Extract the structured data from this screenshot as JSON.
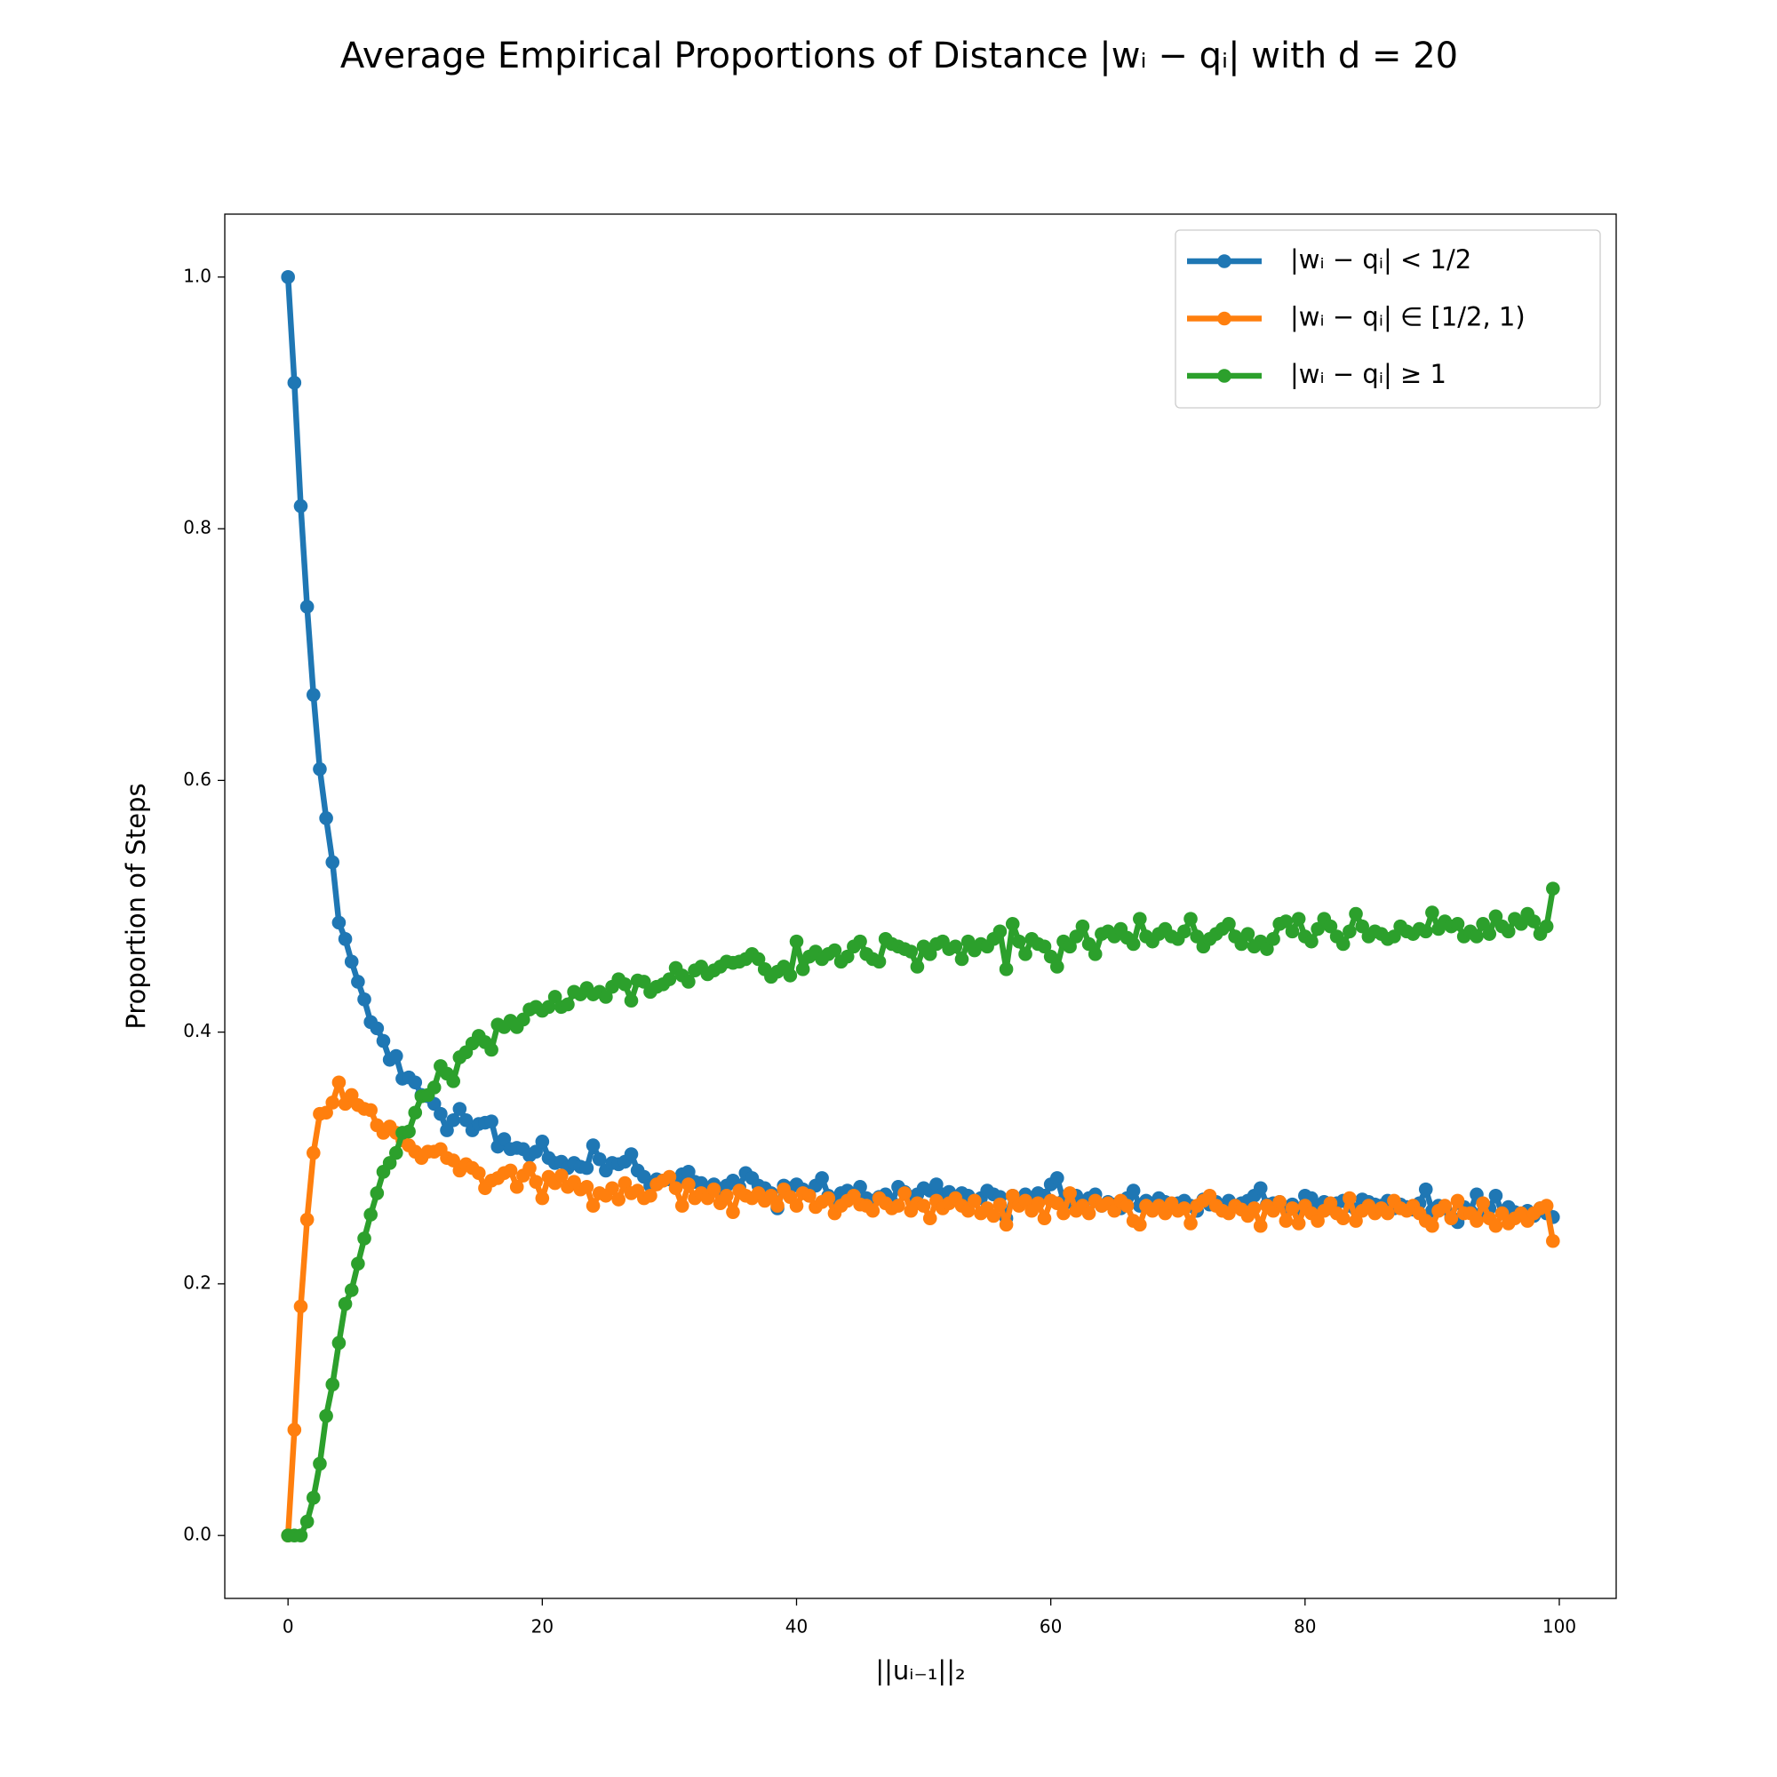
{
  "chart_data": {
    "type": "line",
    "title": "Average Empirical Proportions of Distance |wᵢ − qᵢ| with d = 20",
    "xlabel": "||uᵢ₋₁||₂",
    "ylabel": "Proportion of Steps",
    "legend": "upper right",
    "xlim": [
      -4.975,
      104.475
    ],
    "ylim": [
      -0.05,
      1.05
    ],
    "xticks": [
      0,
      20,
      40,
      60,
      80,
      100
    ],
    "yticks": [
      {
        "value": 0,
        "label": "0.0"
      },
      0.2,
      0.4,
      0.6,
      0.8,
      {
        "value": 1,
        "label": "1.0"
      }
    ],
    "x": [
      0,
      0.5,
      1,
      1.5,
      2,
      2.5,
      3,
      3.5,
      4,
      4.5,
      5,
      5.5,
      6,
      6.5,
      7,
      7.5,
      8,
      8.5,
      9,
      9.5,
      10,
      10.5,
      11,
      11.5,
      12,
      12.5,
      13,
      13.5,
      14,
      14.5,
      15,
      15.5,
      16,
      16.5,
      17,
      17.5,
      18,
      18.5,
      19,
      19.5,
      20,
      20.5,
      21,
      21.5,
      22,
      22.5,
      23,
      23.5,
      24,
      24.5,
      25,
      25.5,
      26,
      26.5,
      27,
      27.5,
      28,
      28.5,
      29,
      29.5,
      30,
      30.5,
      31,
      31.5,
      32,
      32.5,
      33,
      33.5,
      34,
      34.5,
      35,
      35.5,
      36,
      36.5,
      37,
      37.5,
      38,
      38.5,
      39,
      39.5,
      40,
      40.5,
      41,
      41.5,
      42,
      42.5,
      43,
      43.5,
      44,
      44.5,
      45,
      45.5,
      46,
      46.5,
      47,
      47.5,
      48,
      48.5,
      49,
      49.5,
      50,
      50.5,
      51,
      51.5,
      52,
      52.5,
      53,
      53.5,
      54,
      54.5,
      55,
      55.5,
      56,
      56.5,
      57,
      57.5,
      58,
      58.5,
      59,
      59.5,
      60,
      60.5,
      61,
      61.5,
      62,
      62.5,
      63,
      63.5,
      64,
      64.5,
      65,
      65.5,
      66,
      66.5,
      67,
      67.5,
      68,
      68.5,
      69,
      69.5,
      70,
      70.5,
      71,
      71.5,
      72,
      72.5,
      73,
      73.5,
      74,
      74.5,
      75,
      75.5,
      76,
      76.5,
      77,
      77.5,
      78,
      78.5,
      79,
      79.5,
      80,
      80.5,
      81,
      81.5,
      82,
      82.5,
      83,
      83.5,
      84,
      84.5,
      85,
      85.5,
      86,
      86.5,
      87,
      87.5,
      88,
      88.5,
      89,
      89.5,
      90,
      90.5,
      91,
      91.5,
      92,
      92.5,
      93,
      93.5,
      94,
      94.5,
      95,
      95.5,
      96,
      96.5,
      97,
      97.5,
      98,
      98.5,
      99,
      99.5
    ],
    "series": [
      {
        "name": "|wᵢ − qᵢ| < 1/2",
        "color": "#1f77b4",
        "values": [
          1.0,
          0.916,
          0.818,
          0.738,
          0.668,
          0.609,
          0.57,
          0.535,
          0.487,
          0.474,
          0.456,
          0.44,
          0.426,
          0.408,
          0.403,
          0.393,
          0.378,
          0.381,
          0.363,
          0.364,
          0.36,
          0.35,
          0.349,
          0.343,
          0.335,
          0.322,
          0.33,
          0.339,
          0.33,
          0.322,
          0.327,
          0.328,
          0.329,
          0.309,
          0.315,
          0.307,
          0.308,
          0.307,
          0.302,
          0.305,
          0.313,
          0.3,
          0.296,
          0.297,
          0.292,
          0.296,
          0.293,
          0.292,
          0.31,
          0.299,
          0.29,
          0.296,
          0.295,
          0.297,
          0.303,
          0.29,
          0.285,
          0.278,
          0.283,
          0.282,
          0.283,
          0.28,
          0.287,
          0.289,
          0.281,
          0.28,
          0.276,
          0.279,
          0.275,
          0.278,
          0.282,
          0.277,
          0.288,
          0.284,
          0.278,
          0.276,
          0.272,
          0.26,
          0.278,
          0.276,
          0.279,
          0.275,
          0.27,
          0.278,
          0.284,
          0.27,
          0.266,
          0.272,
          0.274,
          0.27,
          0.277,
          0.268,
          0.266,
          0.269,
          0.271,
          0.265,
          0.277,
          0.273,
          0.269,
          0.271,
          0.276,
          0.274,
          0.279,
          0.271,
          0.273,
          0.267,
          0.272,
          0.27,
          0.266,
          0.268,
          0.274,
          0.271,
          0.269,
          0.252,
          0.27,
          0.267,
          0.271,
          0.268,
          0.272,
          0.27,
          0.279,
          0.284,
          0.266,
          0.265,
          0.27,
          0.263,
          0.268,
          0.271,
          0.262,
          0.265,
          0.263,
          0.26,
          0.268,
          0.274,
          0.262,
          0.266,
          0.264,
          0.268,
          0.265,
          0.261,
          0.264,
          0.266,
          0.262,
          0.258,
          0.267,
          0.263,
          0.265,
          0.261,
          0.266,
          0.262,
          0.264,
          0.266,
          0.27,
          0.276,
          0.263,
          0.264,
          0.265,
          0.26,
          0.263,
          0.259,
          0.27,
          0.268,
          0.262,
          0.265,
          0.26,
          0.264,
          0.266,
          0.262,
          0.259,
          0.267,
          0.265,
          0.263,
          0.262,
          0.266,
          0.26,
          0.263,
          0.261,
          0.259,
          0.264,
          0.275,
          0.258,
          0.262,
          0.26,
          0.253,
          0.249,
          0.261,
          0.258,
          0.271,
          0.257,
          0.26,
          0.27,
          0.256,
          0.261,
          0.257,
          0.255,
          0.258,
          0.254,
          0.26,
          0.256,
          0.253
        ]
      },
      {
        "name": "|wᵢ − qᵢ| ∈ [1/2, 1)",
        "color": "#ff7f0e",
        "values": [
          0,
          0.084,
          0.182,
          0.251,
          0.304,
          0.335,
          0.336,
          0.344,
          0.36,
          0.343,
          0.35,
          0.342,
          0.339,
          0.338,
          0.326,
          0.32,
          0.325,
          0.32,
          0.314,
          0.31,
          0.305,
          0.3,
          0.305,
          0.305,
          0.307,
          0.3,
          0.298,
          0.29,
          0.295,
          0.292,
          0.288,
          0.276,
          0.282,
          0.284,
          0.288,
          0.29,
          0.277,
          0.286,
          0.292,
          0.281,
          0.268,
          0.285,
          0.28,
          0.286,
          0.277,
          0.281,
          0.275,
          0.277,
          0.262,
          0.272,
          0.27,
          0.276,
          0.267,
          0.28,
          0.272,
          0.274,
          0.268,
          0.27,
          0.279,
          0.282,
          0.285,
          0.276,
          0.262,
          0.279,
          0.268,
          0.272,
          0.268,
          0.275,
          0.264,
          0.27,
          0.257,
          0.274,
          0.27,
          0.268,
          0.272,
          0.266,
          0.27,
          0.262,
          0.275,
          0.269,
          0.262,
          0.272,
          0.27,
          0.261,
          0.265,
          0.268,
          0.256,
          0.262,
          0.266,
          0.27,
          0.263,
          0.262,
          0.258,
          0.268,
          0.264,
          0.26,
          0.262,
          0.272,
          0.258,
          0.264,
          0.262,
          0.252,
          0.266,
          0.26,
          0.264,
          0.268,
          0.262,
          0.258,
          0.266,
          0.256,
          0.26,
          0.254,
          0.263,
          0.247,
          0.27,
          0.262,
          0.266,
          0.258,
          0.264,
          0.252,
          0.266,
          0.264,
          0.256,
          0.272,
          0.258,
          0.262,
          0.256,
          0.266,
          0.262,
          0.264,
          0.258,
          0.266,
          0.262,
          0.25,
          0.247,
          0.262,
          0.258,
          0.262,
          0.256,
          0.264,
          0.258,
          0.26,
          0.248,
          0.262,
          0.266,
          0.27,
          0.262,
          0.258,
          0.256,
          0.262,
          0.259,
          0.254,
          0.26,
          0.246,
          0.262,
          0.258,
          0.265,
          0.25,
          0.26,
          0.248,
          0.262,
          0.256,
          0.25,
          0.258,
          0.264,
          0.256,
          0.252,
          0.268,
          0.25,
          0.258,
          0.262,
          0.256,
          0.26,
          0.256,
          0.266,
          0.26,
          0.258,
          0.262,
          0.256,
          0.25,
          0.246,
          0.258,
          0.262,
          0.252,
          0.266,
          0.256,
          0.256,
          0.25,
          0.264,
          0.252,
          0.246,
          0.256,
          0.248,
          0.252,
          0.256,
          0.25,
          0.256,
          0.26,
          0.262,
          0.234
        ]
      },
      {
        "name": "|wᵢ − qᵢ| ≥ 1",
        "color": "#2ca02c",
        "values": [
          0,
          0,
          0,
          0.011,
          0.03,
          0.057,
          0.095,
          0.12,
          0.153,
          0.184,
          0.195,
          0.216,
          0.236,
          0.255,
          0.272,
          0.289,
          0.296,
          0.304,
          0.32,
          0.321,
          0.336,
          0.349,
          0.35,
          0.356,
          0.373,
          0.367,
          0.361,
          0.38,
          0.384,
          0.391,
          0.397,
          0.392,
          0.386,
          0.406,
          0.404,
          0.409,
          0.404,
          0.41,
          0.418,
          0.42,
          0.417,
          0.42,
          0.428,
          0.42,
          0.422,
          0.432,
          0.43,
          0.435,
          0.43,
          0.432,
          0.428,
          0.436,
          0.442,
          0.438,
          0.425,
          0.441,
          0.44,
          0.432,
          0.436,
          0.438,
          0.442,
          0.451,
          0.445,
          0.44,
          0.449,
          0.452,
          0.446,
          0.449,
          0.452,
          0.456,
          0.455,
          0.456,
          0.458,
          0.462,
          0.458,
          0.45,
          0.444,
          0.448,
          0.452,
          0.445,
          0.472,
          0.45,
          0.46,
          0.464,
          0.458,
          0.462,
          0.465,
          0.456,
          0.46,
          0.468,
          0.472,
          0.462,
          0.458,
          0.456,
          0.474,
          0.47,
          0.468,
          0.466,
          0.464,
          0.452,
          0.468,
          0.462,
          0.47,
          0.472,
          0.466,
          0.468,
          0.458,
          0.472,
          0.465,
          0.47,
          0.468,
          0.474,
          0.48,
          0.45,
          0.486,
          0.472,
          0.462,
          0.474,
          0.47,
          0.468,
          0.46,
          0.452,
          0.472,
          0.468,
          0.476,
          0.484,
          0.47,
          0.462,
          0.478,
          0.48,
          0.476,
          0.482,
          0.475,
          0.47,
          0.49,
          0.476,
          0.472,
          0.478,
          0.482,
          0.476,
          0.474,
          0.48,
          0.49,
          0.476,
          0.468,
          0.474,
          0.478,
          0.482,
          0.486,
          0.476,
          0.47,
          0.478,
          0.468,
          0.472,
          0.466,
          0.474,
          0.486,
          0.488,
          0.48,
          0.49,
          0.476,
          0.472,
          0.482,
          0.49,
          0.484,
          0.476,
          0.47,
          0.48,
          0.494,
          0.484,
          0.476,
          0.48,
          0.478,
          0.474,
          0.476,
          0.484,
          0.48,
          0.478,
          0.482,
          0.48,
          0.495,
          0.482,
          0.488,
          0.484,
          0.486,
          0.476,
          0.48,
          0.476,
          0.486,
          0.478,
          0.492,
          0.484,
          0.48,
          0.49,
          0.486,
          0.494,
          0.488,
          0.478,
          0.484,
          0.514
        ]
      }
    ]
  }
}
